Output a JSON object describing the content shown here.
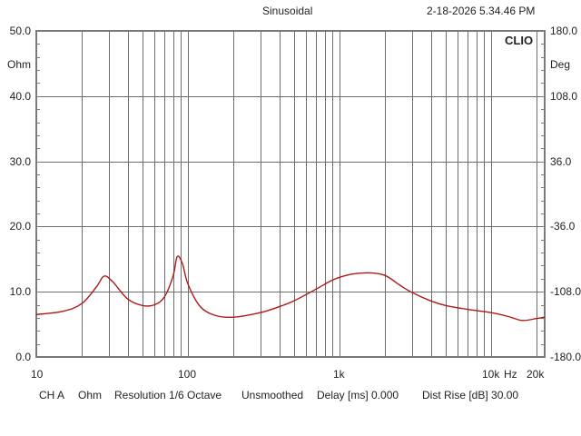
{
  "header": {
    "mode": "Sinusoidal",
    "timestamp": "2-18-2026 5.34.46 PM"
  },
  "brand": "CLIO",
  "left_axis": {
    "unit": "Ohm",
    "ticks": [
      "50.0",
      "40.0",
      "30.0",
      "20.0",
      "10.0",
      "0.0"
    ]
  },
  "right_axis": {
    "unit": "Deg",
    "ticks": [
      "180.0",
      "108.0",
      "36.0",
      "-36.0",
      "-108.0",
      "-180.0"
    ]
  },
  "x_axis": {
    "ticks": [
      "10",
      "100",
      "1k",
      "10k",
      "20k"
    ],
    "unit": "Hz"
  },
  "footer": {
    "channel": "CH A",
    "unit": "Ohm",
    "resolution": "Resolution 1/6 Octave",
    "smoothing": "Unsmoothed",
    "delay": "Delay [ms] 0.000",
    "dist_rise": "Dist Rise [dB] 30.00"
  },
  "colors": {
    "curve": "#b01818",
    "grid": "#6e6e6e",
    "frame": "#7a7a7a"
  },
  "chart_data": {
    "type": "line",
    "title": "Sinusoidal",
    "xlabel": "Hz",
    "ylabel": "Ohm",
    "y2label": "Deg",
    "xscale": "log",
    "xlim": [
      10,
      22500
    ],
    "ylim": [
      0,
      50
    ],
    "y2lim": [
      -180,
      180
    ],
    "grid": true,
    "series": [
      {
        "name": "CH A Impedance (Ohm)",
        "x": [
          10,
          15,
          20,
          25,
          28,
          32,
          40,
          50,
          60,
          70,
          80,
          85,
          92,
          100,
          120,
          150,
          200,
          300,
          400,
          500,
          700,
          900,
          1100,
          1300,
          1600,
          2000,
          2500,
          3000,
          4000,
          5000,
          7000,
          10000,
          13000,
          16000,
          20000,
          22500
        ],
        "values": [
          6.5,
          7.0,
          8.2,
          10.8,
          12.4,
          11.5,
          8.9,
          7.9,
          8.0,
          9.2,
          12.5,
          15.4,
          14.3,
          11.2,
          7.8,
          6.4,
          6.1,
          6.8,
          7.7,
          8.6,
          10.4,
          11.8,
          12.5,
          12.8,
          12.9,
          12.5,
          11.0,
          9.9,
          8.6,
          7.9,
          7.3,
          6.8,
          6.2,
          5.6,
          5.9,
          6.1
        ]
      }
    ]
  }
}
